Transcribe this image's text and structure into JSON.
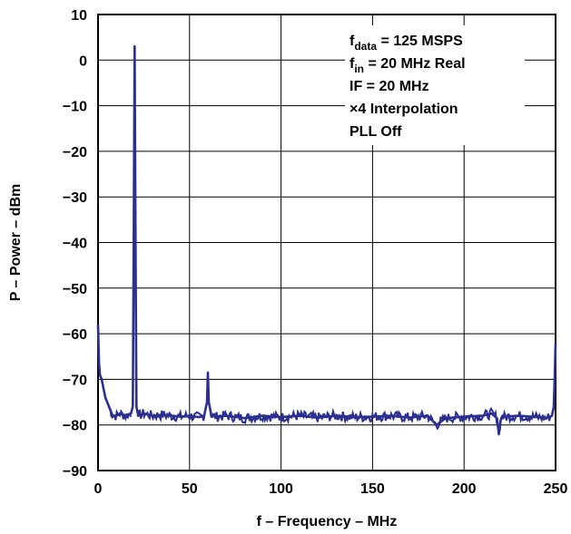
{
  "chart_data": {
    "type": "line",
    "xlabel": "f – Frequency – MHz",
    "ylabel": "P – Power – dBm",
    "xlim": [
      0,
      250
    ],
    "ylim": [
      -90,
      10
    ],
    "xticks": [
      "0",
      "50",
      "100",
      "150",
      "200",
      "250"
    ],
    "yticks": [
      "10",
      "0",
      "−10",
      "−20",
      "−30",
      "−40",
      "−50",
      "−60",
      "−70",
      "−80",
      "−90"
    ],
    "grid": true,
    "line_color": "#2b2f8f",
    "annotations": [
      {
        "main": "f",
        "sub": "data",
        "rest": " = 125 MSPS"
      },
      {
        "main": "f",
        "sub": "in",
        "rest": " = 20 MHz Real"
      },
      {
        "main": "IF = 20 MHz",
        "sub": "",
        "rest": ""
      },
      {
        "main": "×4 Interpolation",
        "sub": "",
        "rest": ""
      },
      {
        "main": "PLL Off",
        "sub": "",
        "rest": ""
      }
    ],
    "series": [
      {
        "x": [
          0,
          0.5,
          1,
          2,
          3,
          4,
          5,
          6,
          7,
          8,
          10,
          12,
          15,
          18,
          19,
          19.5,
          20,
          20.5,
          21,
          22,
          25,
          30,
          35,
          40,
          45,
          50,
          55,
          58,
          59.5,
          60,
          60.5,
          62,
          65,
          70,
          80,
          90,
          100,
          110,
          120,
          130,
          140,
          150,
          160,
          170,
          180,
          185,
          190,
          200,
          210,
          215,
          218,
          219,
          220,
          221,
          222,
          225,
          230,
          240,
          245,
          248,
          249,
          249.5,
          250
        ],
        "y": [
          -58,
          -66,
          -69,
          -70,
          -72,
          -74,
          -75,
          -76,
          -77,
          -78,
          -78,
          -77.5,
          -78,
          -77.5,
          -76,
          -40,
          3,
          -40,
          -76,
          -78,
          -77.5,
          -78,
          -77.8,
          -78,
          -78.2,
          -78,
          -78.3,
          -78,
          -75,
          -68.5,
          -75,
          -78,
          -78.2,
          -78,
          -78.5,
          -78,
          -78.3,
          -78,
          -78.4,
          -78,
          -78.3,
          -78.2,
          -78,
          -78.4,
          -78,
          -80,
          -78.5,
          -78.2,
          -78,
          -77.5,
          -78.5,
          -82,
          -79,
          -78,
          -78.3,
          -78.1,
          -78,
          -78.3,
          -78.5,
          -78,
          -76,
          -70,
          -62
        ]
      }
    ]
  }
}
